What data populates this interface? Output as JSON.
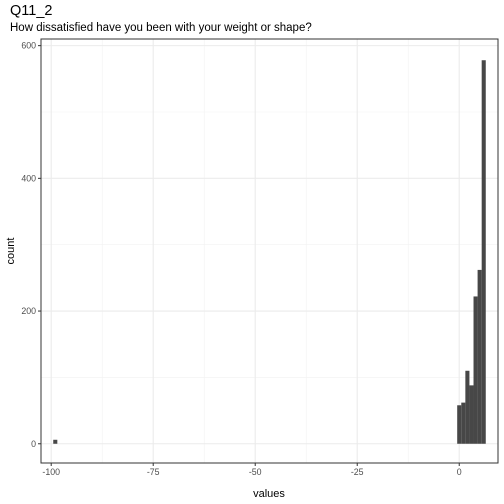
{
  "chart_data": {
    "type": "bar",
    "title": "Q11_2",
    "subtitle": "How dissatisfied have you been with your weight or shape?",
    "xlabel": "values",
    "ylabel": "count",
    "xlim": [
      -102.5,
      9.5
    ],
    "ylim": [
      -29,
      610
    ],
    "x_ticks": [
      -100,
      -75,
      -50,
      -25,
      0
    ],
    "x_tick_labels": [
      "-100",
      "-75",
      "-50",
      "-25",
      "0"
    ],
    "y_ticks": [
      0,
      200,
      400,
      600
    ],
    "y_tick_labels": [
      "0",
      "200",
      "400",
      "600"
    ],
    "grid": true,
    "bar_color": "#474747",
    "bars": [
      {
        "x0": -99.5,
        "x1": -98.5,
        "count": 6
      },
      {
        "x0": -0.5,
        "x1": 0.5,
        "count": 58
      },
      {
        "x0": 0.5,
        "x1": 1.5,
        "count": 62
      },
      {
        "x0": 1.5,
        "x1": 2.5,
        "count": 110
      },
      {
        "x0": 2.5,
        "x1": 3.5,
        "count": 88
      },
      {
        "x0": 3.5,
        "x1": 4.5,
        "count": 222
      },
      {
        "x0": 4.5,
        "x1": 5.5,
        "count": 262
      },
      {
        "x0": 5.5,
        "x1": 6.5,
        "count": 578
      }
    ]
  }
}
